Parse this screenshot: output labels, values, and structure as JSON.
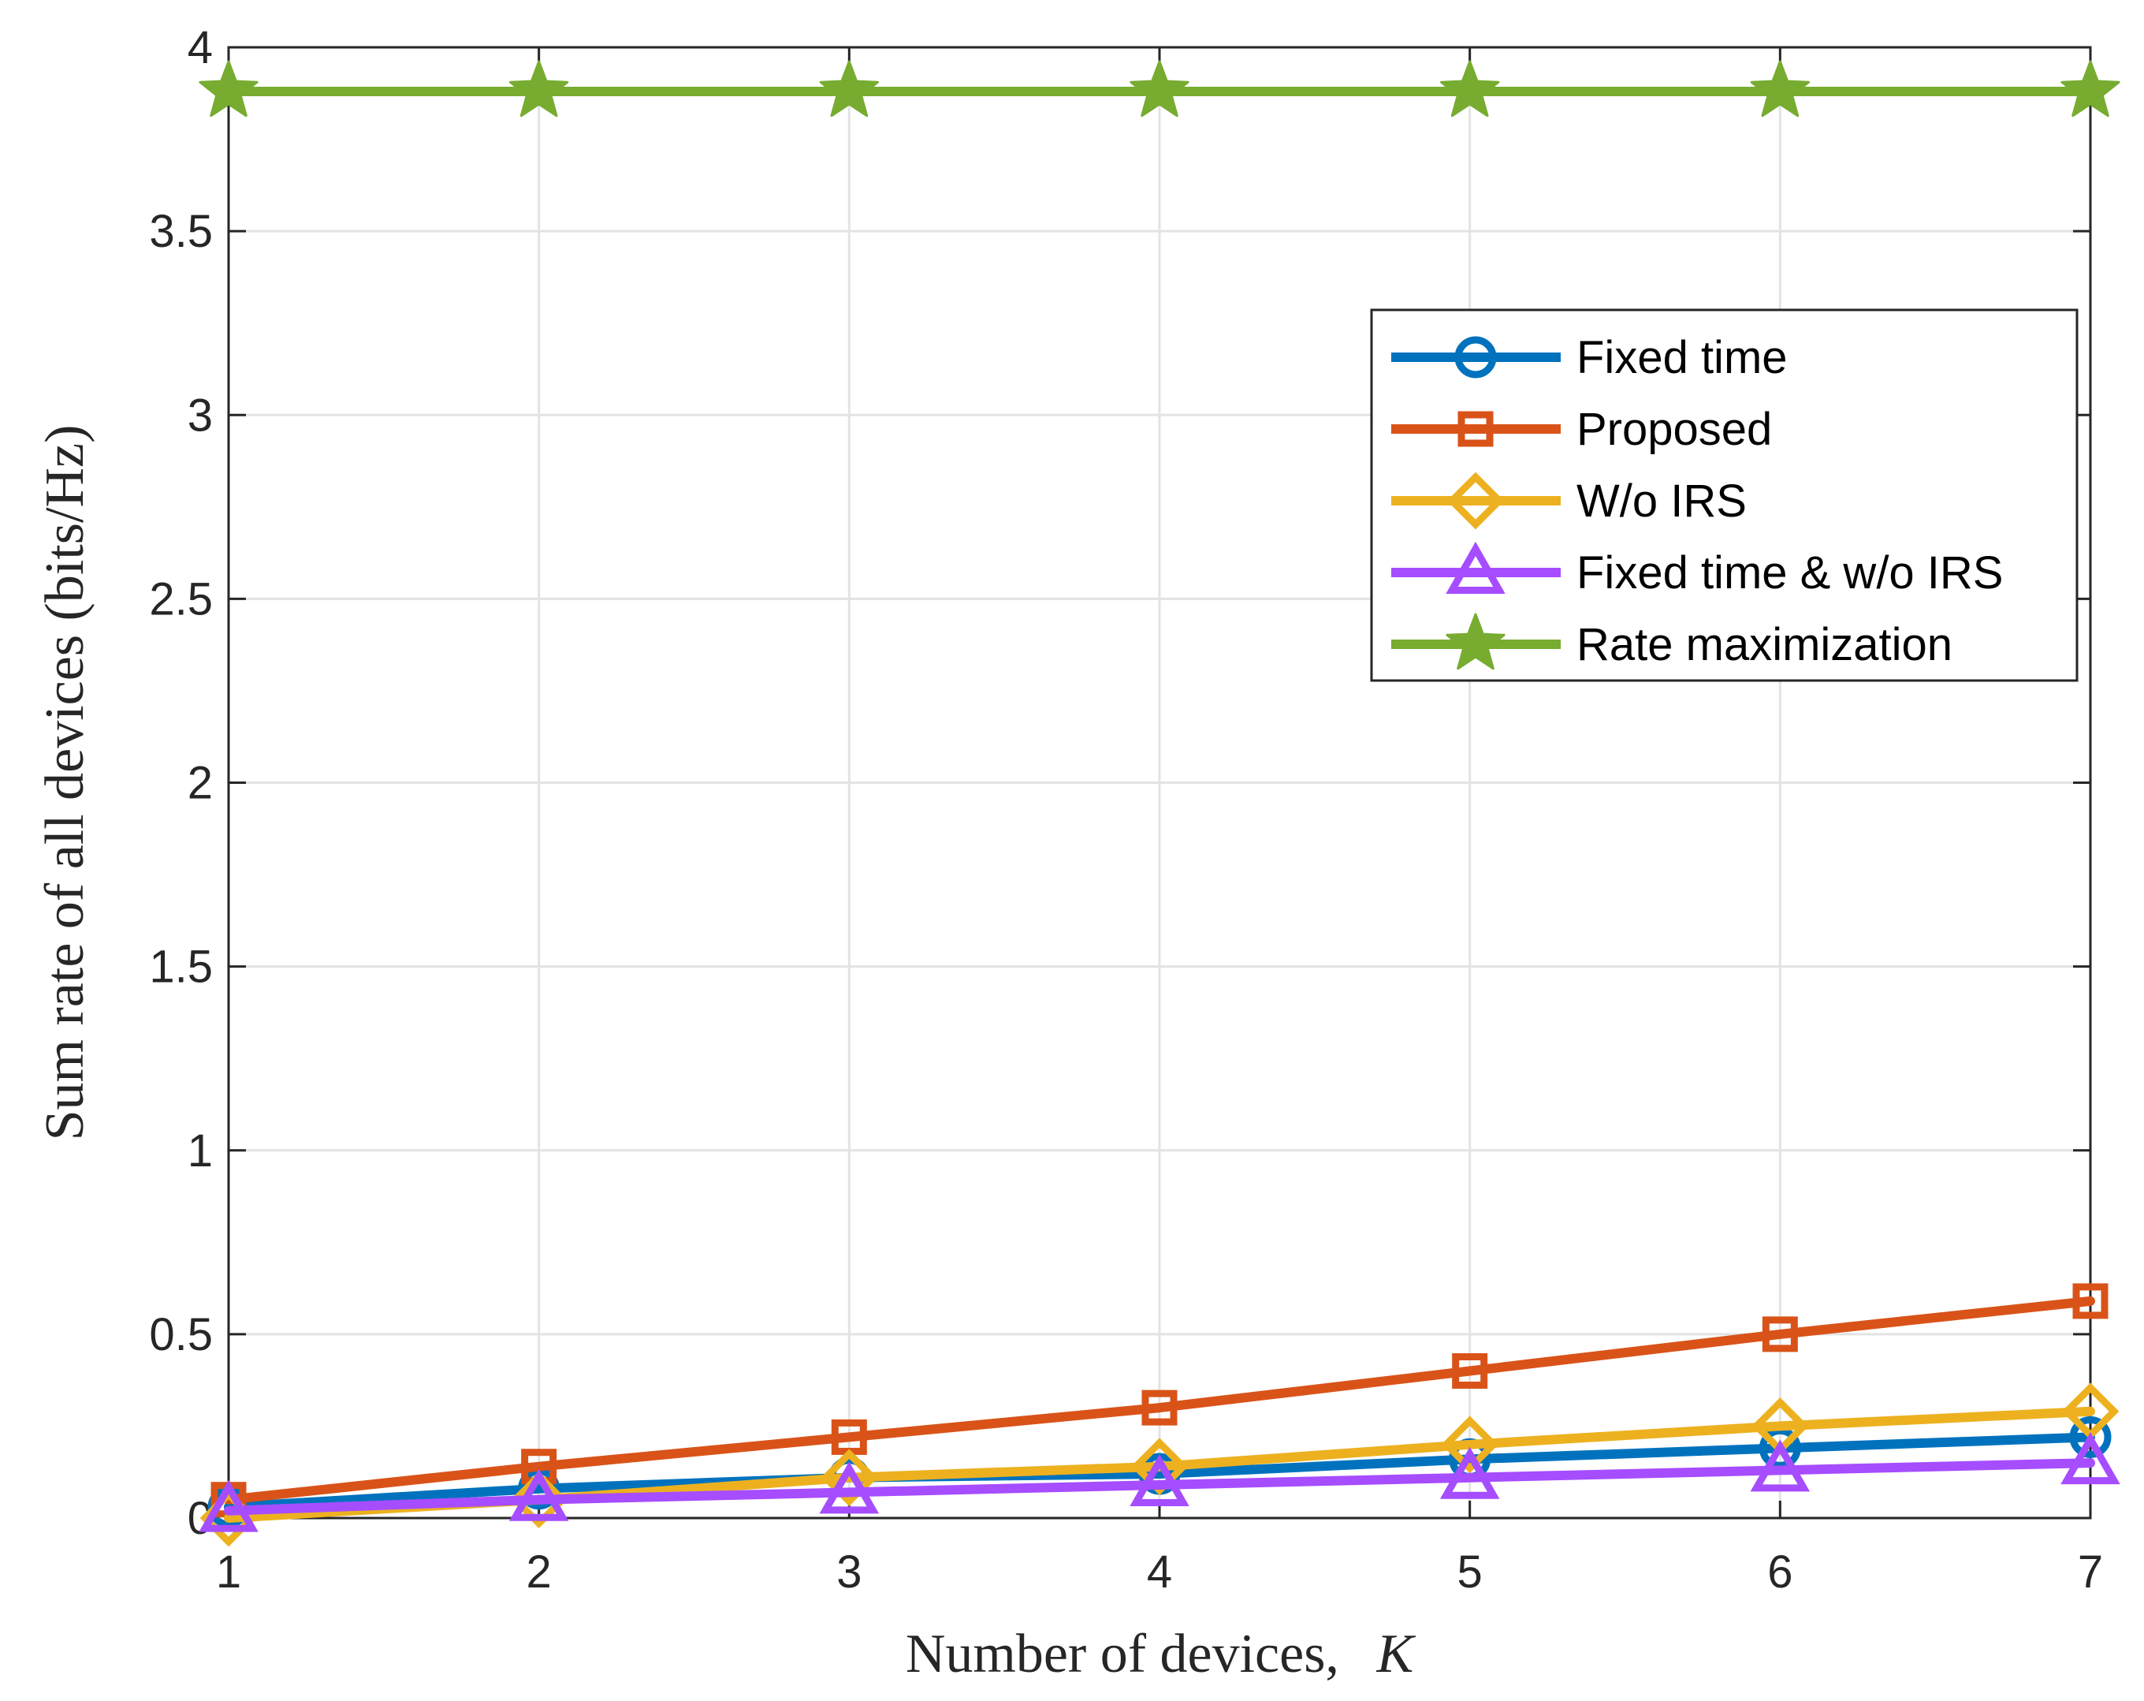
{
  "chart_data": {
    "type": "line",
    "title": "",
    "xlabel": "Number of devices,",
    "xlabel_symbol": "K",
    "ylabel": "Sum rate of all devices (bits/Hz)",
    "x": [
      1,
      2,
      3,
      4,
      5,
      6,
      7
    ],
    "xlim": [
      1,
      7
    ],
    "ylim": [
      0,
      4
    ],
    "xticks": [
      1,
      2,
      3,
      4,
      5,
      6,
      7
    ],
    "yticks": [
      0,
      0.5,
      1,
      1.5,
      2,
      2.5,
      3,
      3.5,
      4
    ],
    "ytick_labels": [
      "0",
      "0.5",
      "1",
      "1.5",
      "2",
      "2.5",
      "3",
      "3.5",
      "4"
    ],
    "xtick_labels": [
      "1",
      "2",
      "3",
      "4",
      "5",
      "6",
      "7"
    ],
    "grid": true,
    "legend_position": "upper-right",
    "series": [
      {
        "name": "Fixed time",
        "color": "#0072BD",
        "marker": "circle",
        "values": [
          0.03,
          0.08,
          0.11,
          0.12,
          0.16,
          0.19,
          0.22
        ]
      },
      {
        "name": "Proposed",
        "color": "#D95319",
        "marker": "square",
        "values": [
          0.05,
          0.14,
          0.22,
          0.3,
          0.4,
          0.5,
          0.59
        ]
      },
      {
        "name": "W/o IRS",
        "color": "#EDB120",
        "marker": "diamond",
        "values": [
          0.0,
          0.05,
          0.11,
          0.14,
          0.2,
          0.25,
          0.29
        ]
      },
      {
        "name": "Fixed time & w/o IRS",
        "color": "#A64DFF",
        "marker": "triangle",
        "values": [
          0.02,
          0.05,
          0.07,
          0.09,
          0.11,
          0.13,
          0.15
        ]
      },
      {
        "name": "Rate maximization",
        "color": "#77AC30",
        "marker": "star",
        "values": [
          3.88,
          3.88,
          3.88,
          3.88,
          3.88,
          3.88,
          3.88
        ]
      }
    ]
  }
}
